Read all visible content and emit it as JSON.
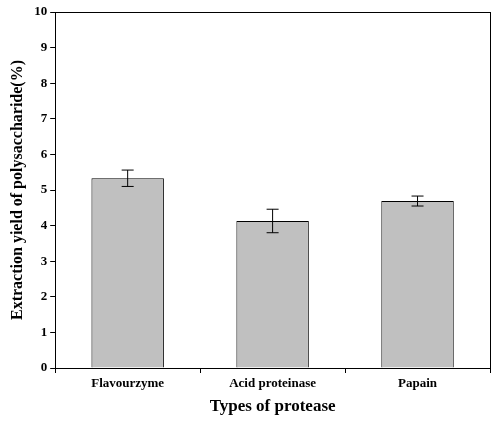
{
  "chart_data": {
    "type": "bar",
    "categories": [
      "Flavourzyme",
      "Acid proteinase",
      "Papain"
    ],
    "values": [
      5.33,
      4.13,
      4.69
    ],
    "errors": [
      0.23,
      0.33,
      0.14
    ],
    "color": "#c0c0c0",
    "x_label": "Types of protease",
    "y_label": "Extraction yield of polysaccharide(%)",
    "ylim": [
      0,
      10
    ],
    "yticks": [
      0,
      1,
      2,
      3,
      4,
      5,
      6,
      7,
      8,
      9,
      10
    ],
    "grid": false
  }
}
